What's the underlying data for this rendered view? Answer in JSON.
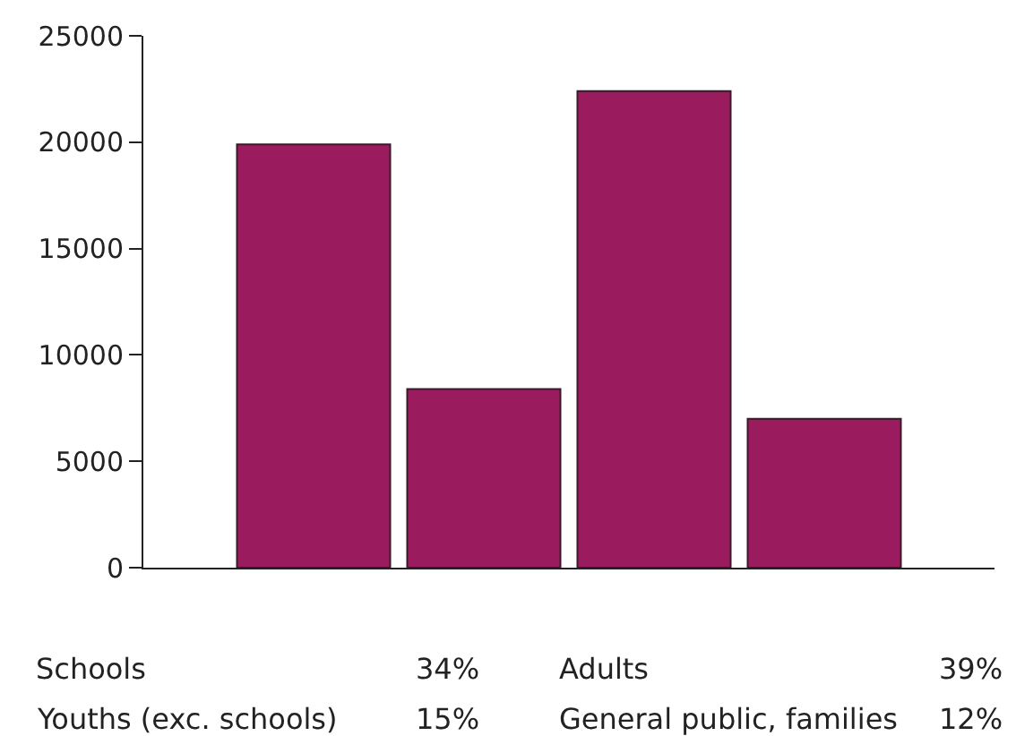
{
  "chart_data": {
    "type": "bar",
    "categories": [
      null,
      null,
      null,
      null
    ],
    "values": [
      19900,
      8400,
      22400,
      7000
    ],
    "color": "#9b1b5f",
    "ylim": [
      0,
      25000
    ],
    "yticks": [
      0,
      5000,
      10000,
      15000,
      20000,
      25000
    ],
    "grid": false,
    "tick_labels": "y",
    "annotations": [
      "Schools",
      "34%",
      "Adults",
      "39%",
      "Youths (exc. schools)",
      "15%",
      "General public, families",
      "12%"
    ]
  }
}
